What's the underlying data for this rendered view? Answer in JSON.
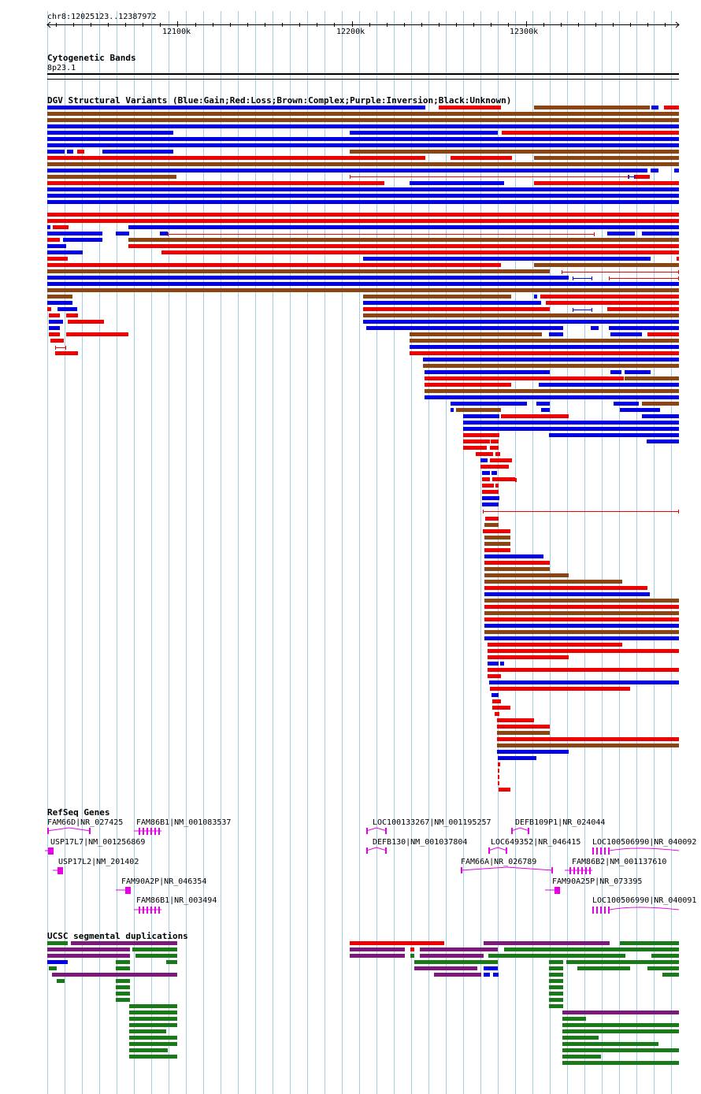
{
  "location": "chr8:12025123..12387972",
  "ruler": {
    "start_bp": 12025123,
    "end_bp": 12387972,
    "ticks": [
      {
        "label": "12100k",
        "bp": 12100000
      },
      {
        "label": "12200k",
        "bp": 12200000
      },
      {
        "label": "12300k",
        "bp": 12300000
      }
    ]
  },
  "tracks": {
    "cytobands": {
      "title": "Cytogenetic Bands",
      "band": "8p23.1"
    },
    "dgv": {
      "title": "DGV Structural Variants (Blue:Gain;Red:Loss;Brown:Complex;Purple:Inversion;Black:Unknown)"
    },
    "refseq": {
      "title": "RefSeq Genes"
    },
    "segdup": {
      "title": "UCSC segmental duplications"
    }
  },
  "colors": {
    "gain": "#0000e6",
    "loss": "#ee0000",
    "complex": "#8b4513",
    "inversion": "#7b1a7b",
    "gene": "#e600e6",
    "segdup_green": "#1a7a1a",
    "grid": "#a6cfe6"
  },
  "genes": [
    {
      "label": "FAM66D|NR_027425"
    },
    {
      "label": "FAM86B1|NM_001083537"
    },
    {
      "label": "USP17L7|NM_001256869"
    },
    {
      "label": "USP17L2|NM_201402"
    },
    {
      "label": "FAM90A2P|NR_046354"
    },
    {
      "label": "FAM86B1|NR_003494"
    },
    {
      "label": "LOC100133267|NM_001195257"
    },
    {
      "label": "DEFB109P1|NR_024044"
    },
    {
      "label": "DEFB130|NM_001037804"
    },
    {
      "label": "LOC649352|NR_046415"
    },
    {
      "label": "LOC100506990|NR_040092"
    },
    {
      "label": "FAM66A|NR_026789"
    },
    {
      "label": "FAM86B2|NM_001137610"
    },
    {
      "label": "FAM90A25P|NR_073395"
    },
    {
      "label": "LOC100506990|NR_040091"
    }
  ]
}
